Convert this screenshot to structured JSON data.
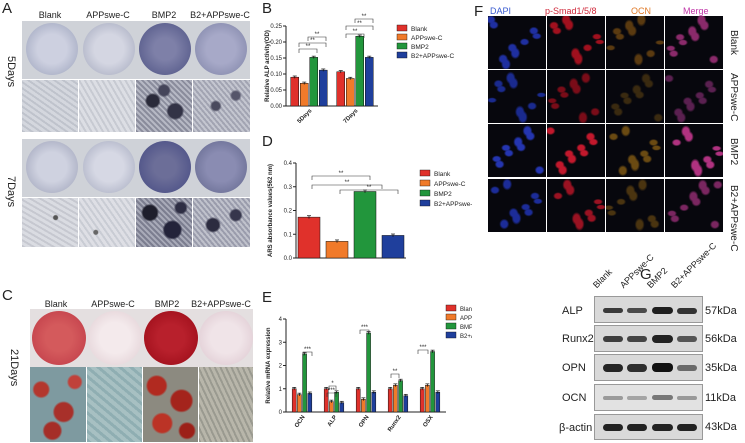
{
  "panels": {
    "A": {
      "label": "A",
      "columns": [
        "Blank",
        "APPswe-C",
        "BMP2",
        "B2+APPswe-C"
      ],
      "rows": [
        "5Days",
        "7Days"
      ]
    },
    "B": {
      "label": "B"
    },
    "C": {
      "label": "C",
      "columns": [
        "Blank",
        "APPswe-C",
        "BMP2",
        "B2+APPswe-C"
      ],
      "row": "21Days"
    },
    "D": {
      "label": "D"
    },
    "E": {
      "label": "E"
    },
    "F": {
      "label": "F",
      "columns": [
        "DAPI",
        "p-Smad1/5/8",
        "OCN",
        "Merge"
      ],
      "rows": [
        "Blank",
        "APPswe-C",
        "BMP2",
        "B2+APPswe-C"
      ]
    },
    "G": {
      "label": "G",
      "lanes": [
        "Blank",
        "APPswe-C",
        "BMP2",
        "B2+APPswe-C"
      ],
      "proteins": [
        "ALP",
        "Runx2",
        "OPN",
        "OCN",
        "β-actin"
      ],
      "sizes": [
        "57kDa",
        "56kDa",
        "35kDa",
        "11kDa",
        "43kDa"
      ]
    }
  },
  "colors": {
    "Blank": "#e0312b",
    "APPswe-C": "#f07a2a",
    "BMP2": "#22963c",
    "B2+APPswe-C": "#1f3f9c"
  },
  "chart_data": [
    {
      "id": "B",
      "type": "bar",
      "ylabel": "Relative ALP activity(OD)",
      "categories": [
        "5Days",
        "7Days"
      ],
      "ylim": [
        0,
        0.25
      ],
      "yticks": [
        "0.00",
        "0.05",
        "0.10",
        "0.15",
        "0.20",
        "0.25"
      ],
      "series": [
        {
          "name": "Blank",
          "values": [
            0.09,
            0.107
          ]
        },
        {
          "name": "APPswe-C",
          "values": [
            0.071,
            0.086
          ]
        },
        {
          "name": "BMP2",
          "values": [
            0.152,
            0.218
          ]
        },
        {
          "name": "B2+APPswe-C",
          "values": [
            0.112,
            0.152
          ]
        }
      ],
      "annotations": [
        "**",
        "**",
        "**",
        "**",
        "**",
        "**"
      ]
    },
    {
      "id": "D",
      "type": "bar",
      "ylabel": "ARS absorbance values(562 nm)",
      "categories": [
        ""
      ],
      "ylim": [
        0,
        0.4
      ],
      "yticks": [
        "0.0",
        "0.1",
        "0.2",
        "0.3",
        "0.4"
      ],
      "series": [
        {
          "name": "Blank",
          "values": [
            0.172
          ]
        },
        {
          "name": "APPswe-C",
          "values": [
            0.07
          ]
        },
        {
          "name": "BMP2",
          "values": [
            0.28
          ]
        },
        {
          "name": "B2+APPswe-C",
          "values": [
            0.095
          ]
        }
      ],
      "annotations": [
        "**",
        "**",
        "**"
      ]
    },
    {
      "id": "E",
      "type": "bar",
      "ylabel": "Relative mRNA expression",
      "categories": [
        "OCN",
        "ALP",
        "OPN",
        "Runx2",
        "OSX"
      ],
      "ylim": [
        0,
        4
      ],
      "yticks": [
        "0",
        "1",
        "2",
        "3",
        "4"
      ],
      "series": [
        {
          "name": "Blank",
          "values": [
            1.0,
            1.0,
            1.0,
            1.0,
            1.0
          ]
        },
        {
          "name": "APPswe-C",
          "values": [
            0.75,
            0.45,
            0.55,
            1.15,
            1.15
          ]
        },
        {
          "name": "BMP2",
          "values": [
            2.5,
            0.85,
            3.4,
            1.35,
            2.6
          ]
        },
        {
          "name": "B2+APPswe-C",
          "values": [
            0.8,
            0.4,
            0.85,
            0.7,
            0.85
          ]
        }
      ],
      "annotations": [
        "***",
        "*",
        "***",
        "***",
        "**"
      ]
    }
  ]
}
